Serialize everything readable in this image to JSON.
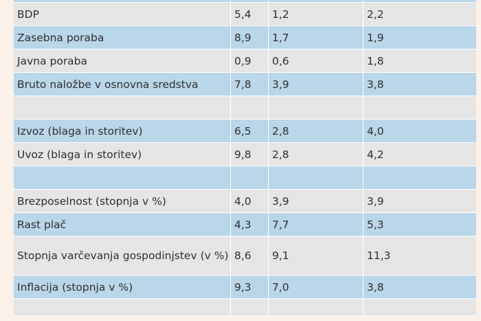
{
  "table": {
    "rows": [
      {
        "label": "BDP",
        "a": "5,4",
        "b": "1,2",
        "c": "2,2"
      },
      {
        "label": "Zasebna poraba",
        "a": "8,9",
        "b": "1,7",
        "c": "1,9"
      },
      {
        "label": "Javna poraba",
        "a": "0,9",
        "b": "0,6",
        "c": "1,8"
      },
      {
        "label": "Bruto naložbe v osnovna sredstva",
        "a": "7,8",
        "b": "3,9",
        "c": "3,8"
      },
      {
        "label": "",
        "a": "",
        "b": "",
        "c": ""
      },
      {
        "label": "Izvoz (blaga in storitev)",
        "a": "6,5",
        "b": "2,8",
        "c": "4,0"
      },
      {
        "label": "Uvoz (blaga in storitev)",
        "a": "9,8",
        "b": "2,8",
        "c": "4,2"
      },
      {
        "label": "",
        "a": "",
        "b": "",
        "c": ""
      },
      {
        "label": "Brezposelnost (stopnja v %)",
        "a": "4,0",
        "b": "3,9",
        "c": "3,9"
      },
      {
        "label": "Rast plač",
        "a": "4,3",
        "b": "7,7",
        "c": "5,3"
      },
      {
        "label": "Stopnja varčevanja gospodinjstev (v %)",
        "a": "8,6",
        "b": "9,1",
        "c": "11,3"
      },
      {
        "label": "Inflacija (stopnja v %)",
        "a": "9,3",
        "b": "7,0",
        "c": "3,8"
      },
      {
        "label": "",
        "a": "",
        "b": "",
        "c": ""
      }
    ]
  }
}
